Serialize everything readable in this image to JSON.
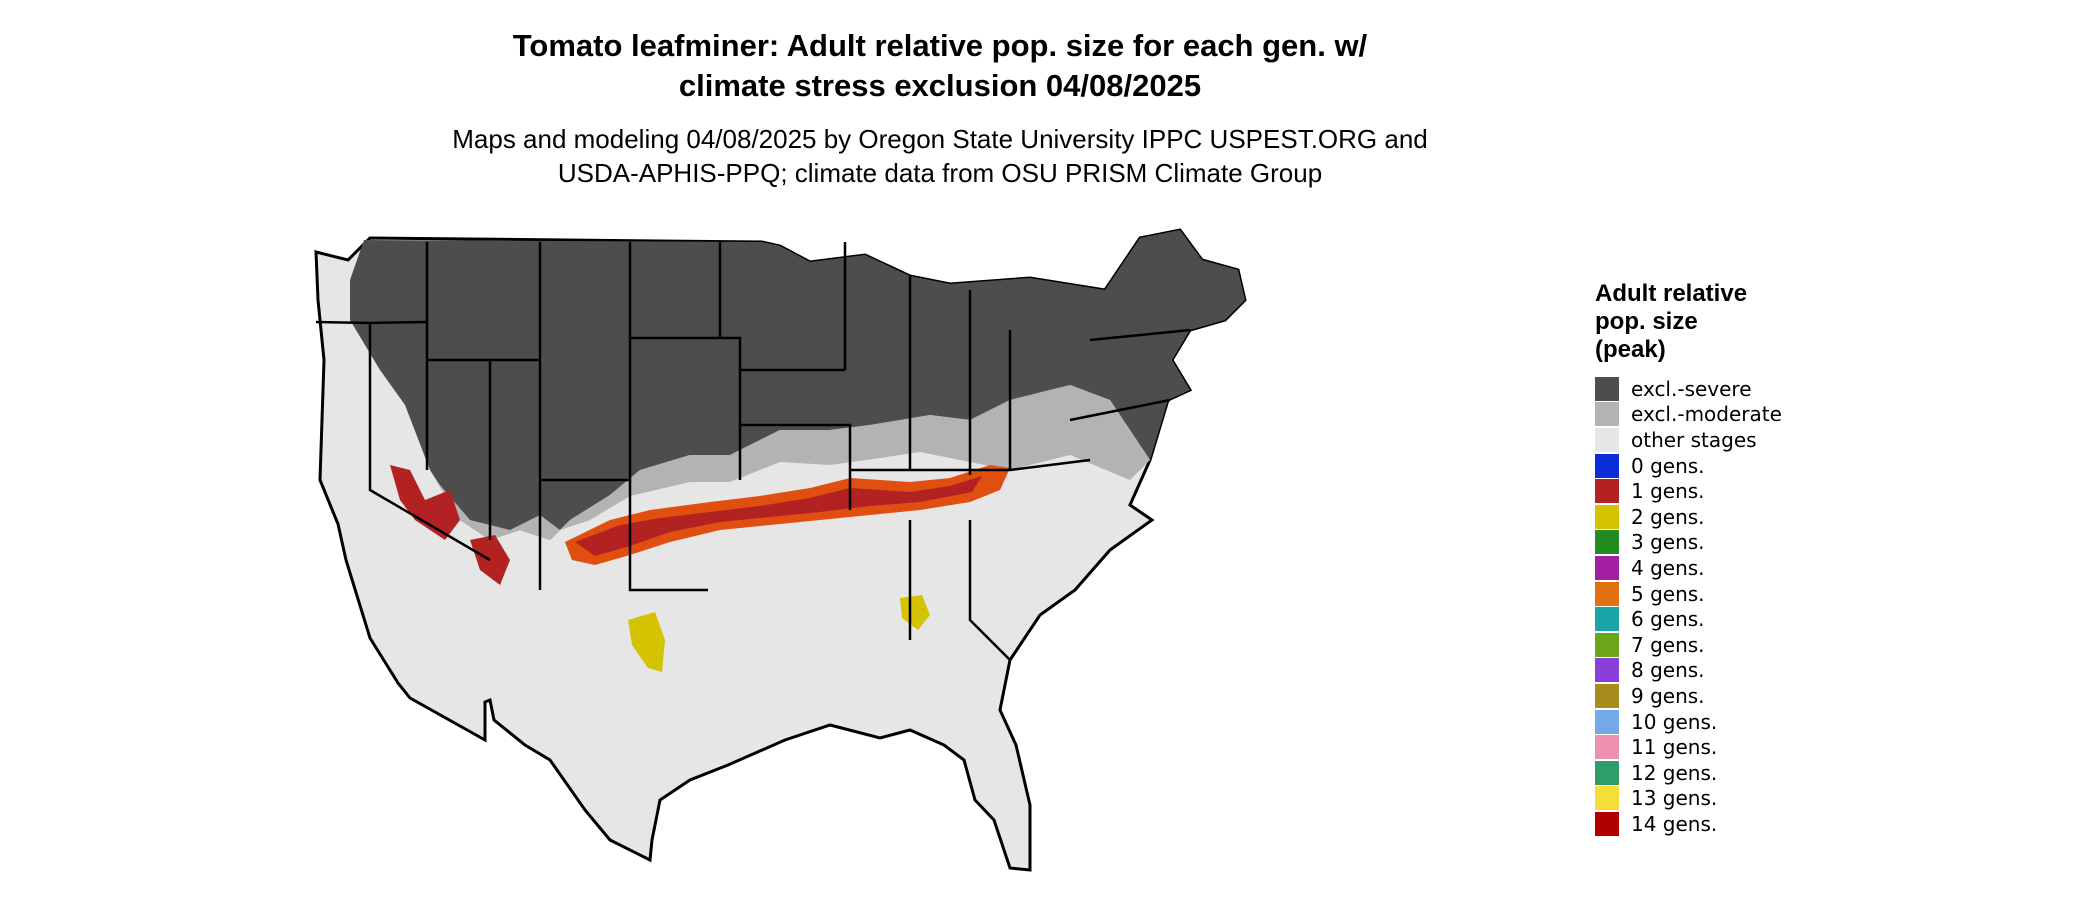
{
  "title_line1": "Tomato leafminer: Adult relative pop. size for each gen. w/",
  "title_line2": "climate stress exclusion 04/08/2025",
  "subtitle_line1": "Maps and modeling 04/08/2025 by Oregon State University IPPC USPEST.ORG and",
  "subtitle_line2": "USDA-APHIS-PPQ; climate data from OSU PRISM Climate Group",
  "map": {
    "region": "Contiguous United States",
    "colors": {
      "excl_severe": "#4d4d4d",
      "excl_moderate": "#b3b3b3",
      "other_stages": "#e6e6e6",
      "one_gen": "#b22222",
      "orange_band": "#e04e10",
      "two_gens": "#d4c300",
      "state_border": "#000000"
    }
  },
  "legend": {
    "title_line1": "Adult relative",
    "title_line2": "pop. size",
    "title_line3": "(peak)",
    "items": [
      {
        "label": "excl.-severe",
        "color": "#4d4d4d"
      },
      {
        "label": "excl.-moderate",
        "color": "#b3b3b3"
      },
      {
        "label": "other stages",
        "color": "#e6e6e6"
      },
      {
        "label": "0 gens.",
        "color": "#0a2fd6"
      },
      {
        "label": "1 gens.",
        "color": "#b22222"
      },
      {
        "label": "2 gens.",
        "color": "#d4c300"
      },
      {
        "label": "3 gens.",
        "color": "#228b22"
      },
      {
        "label": "4 gens.",
        "color": "#a020a0"
      },
      {
        "label": "5 gens.",
        "color": "#e07010"
      },
      {
        "label": "6 gens.",
        "color": "#1aa6a6"
      },
      {
        "label": "7 gens.",
        "color": "#6aa51a"
      },
      {
        "label": "8 gens.",
        "color": "#8a40d8"
      },
      {
        "label": "9 gens.",
        "color": "#a88d1c"
      },
      {
        "label": "10 gens.",
        "color": "#74a9e8"
      },
      {
        "label": "11 gens.",
        "color": "#ee90b0"
      },
      {
        "label": "12 gens.",
        "color": "#2e9e68"
      },
      {
        "label": "13 gens.",
        "color": "#f5dd3a"
      },
      {
        "label": "14 gens.",
        "color": "#b00000"
      }
    ]
  }
}
